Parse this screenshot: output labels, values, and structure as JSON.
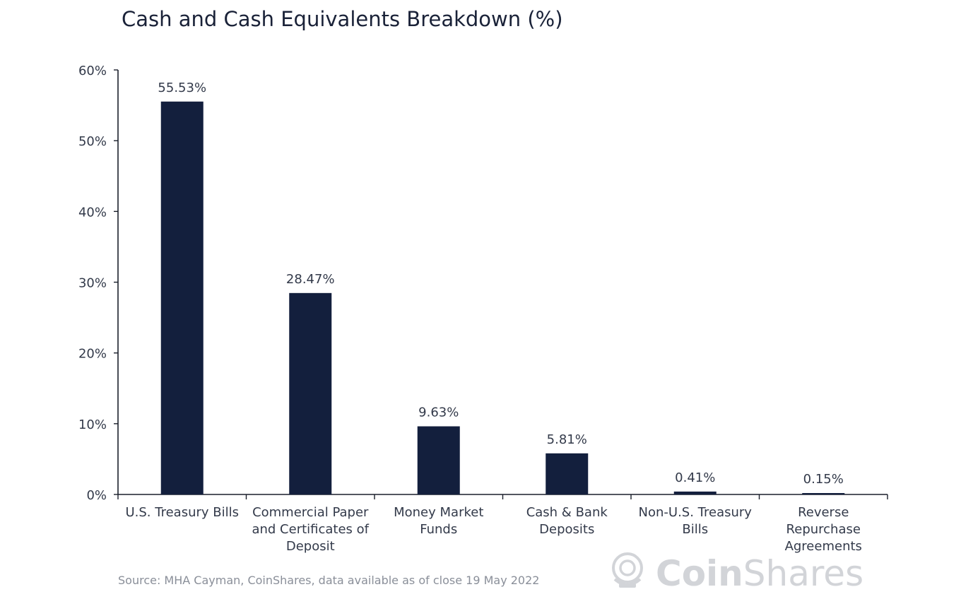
{
  "chart_data": {
    "type": "bar",
    "title": "Cash and Cash Equivalents Breakdown (%)",
    "categories": [
      [
        "U.S. Treasury Bills"
      ],
      [
        "Commercial Paper",
        "and Certificates of",
        "Deposit"
      ],
      [
        "Money Market",
        "Funds"
      ],
      [
        "Cash & Bank",
        "Deposits"
      ],
      [
        "Non-U.S. Treasury",
        "Bills"
      ],
      [
        "Reverse",
        "Repurchase",
        "Agreements"
      ]
    ],
    "values": [
      55.53,
      28.47,
      9.63,
      5.81,
      0.41,
      0.15
    ],
    "data_labels": [
      "55.53%",
      "28.47%",
      "9.63%",
      "5.81%",
      "0.41%",
      "0.15%"
    ],
    "ylim": [
      0,
      60
    ],
    "yticks": [
      0,
      10,
      20,
      30,
      40,
      50,
      60
    ],
    "ytick_labels": [
      "0%",
      "10%",
      "20%",
      "30%",
      "40%",
      "50%",
      "60%"
    ],
    "xlabel": "",
    "ylabel": "",
    "grid": false,
    "legend": "none",
    "bar_color": "#131f3d"
  },
  "footer": {
    "source": "Source: MHA Cayman, CoinShares, data available as of close 19 May 2022",
    "logo_text_bold": "Coin",
    "logo_text_light": "Shares",
    "logo_icon": "astronaut-helmet-icon"
  }
}
